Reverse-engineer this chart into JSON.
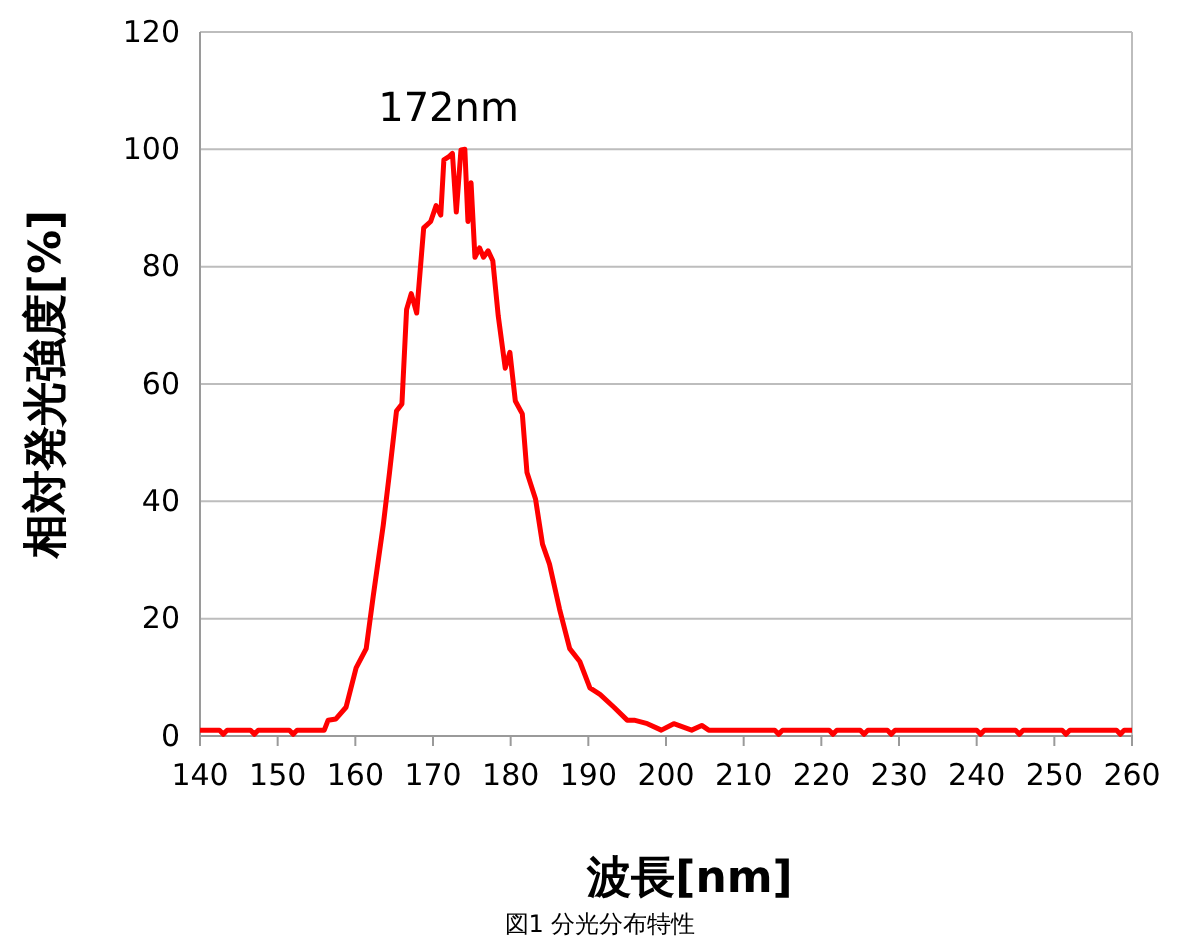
{
  "chart_data": {
    "type": "line",
    "xlabel": "波長[nm]",
    "ylabel": "相対発光強度[%]",
    "annotations": [
      {
        "text": "172nm",
        "x": 172,
        "y": 100
      },
      "図1 分光分布特性"
    ],
    "xlim": [
      140,
      260
    ],
    "xticks": [
      140,
      150,
      160,
      170,
      180,
      190,
      200,
      210,
      220,
      230,
      240,
      250,
      260
    ],
    "ylim": [
      0,
      120
    ],
    "yticks": [
      0,
      20,
      40,
      60,
      80,
      100,
      120
    ],
    "grid": "y",
    "marker": "none",
    "line_style": "solid",
    "series": [
      {
        "color": "#ff0000",
        "x": [
          140,
          142.5,
          143,
          143.5,
          146.5,
          147,
          147.5,
          151.5,
          152,
          152.5,
          156,
          156.5,
          157.5,
          158.8,
          160.1,
          161.4,
          162.3,
          163.6,
          164.4,
          165.3,
          166,
          166.6,
          167.2,
          167.9,
          168.8,
          169.7,
          170.4,
          171,
          171.4,
          172.1,
          172.5,
          173,
          173.6,
          174.1,
          174.5,
          174.9,
          175.4,
          176,
          176.5,
          177.1,
          177.7,
          178.4,
          179.3,
          179.9,
          180.6,
          181.5,
          182.1,
          183.2,
          184.1,
          185,
          186.3,
          187.6,
          188.9,
          190.2,
          191.5,
          193.3,
          195,
          195.9,
          197.6,
          199.4,
          201,
          203.3,
          204.6,
          205.5,
          214,
          214.5,
          215,
          221,
          221.5,
          222,
          225,
          225.5,
          226,
          228.5,
          229,
          229.5,
          240,
          240.5,
          241,
          245,
          245.5,
          246,
          251,
          251.5,
          252,
          258,
          258.5,
          259,
          260
        ],
        "values": [
          1,
          1,
          0.3,
          1,
          1,
          0.3,
          1,
          1,
          0.3,
          1,
          1,
          2.7,
          2.9,
          4.9,
          11.6,
          14.9,
          23.8,
          36,
          44.9,
          55.4,
          56.6,
          72.7,
          75.4,
          72.1,
          86.6,
          87.7,
          90.4,
          88.8,
          98.2,
          98.8,
          99.3,
          89.3,
          99.9,
          100,
          87.7,
          94.3,
          81.6,
          83.2,
          81.6,
          82.7,
          81,
          71.6,
          62.7,
          65.4,
          57.1,
          54.9,
          44.9,
          40.4,
          32.7,
          29.3,
          21.6,
          14.9,
          12.7,
          8.2,
          7.1,
          4.9,
          2.7,
          2.7,
          2.1,
          1,
          2.1,
          1,
          1.8,
          1,
          1,
          0.3,
          1,
          1,
          0.3,
          1,
          1,
          0.3,
          1,
          1,
          0.3,
          1,
          1,
          0.3,
          1,
          1,
          0.3,
          1,
          1,
          0.3,
          1,
          1,
          0.3,
          1,
          1
        ]
      }
    ]
  }
}
